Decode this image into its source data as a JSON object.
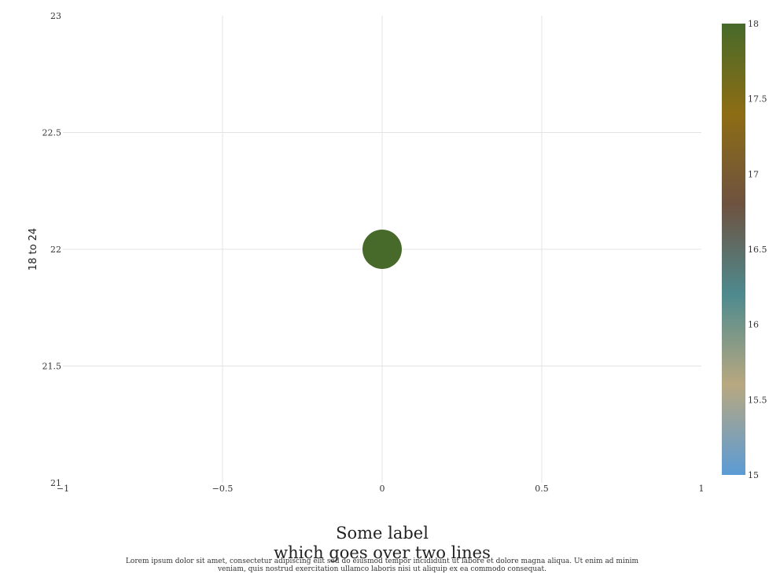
{
  "chart_data": {
    "type": "scatter",
    "title": "",
    "xlabel_lines": [
      "Some label",
      "which goes over two lines"
    ],
    "ylabel": "18 to 24",
    "xlim": [
      -1,
      1
    ],
    "ylim": [
      21,
      23
    ],
    "x_ticks": [
      -1,
      -0.5,
      0,
      0.5,
      1
    ],
    "x_tick_labels": [
      "−1",
      "−0.5",
      "0",
      "0.5",
      "1"
    ],
    "y_ticks": [
      21,
      21.5,
      22,
      22.5,
      23
    ],
    "y_tick_labels": [
      "21",
      "21.5",
      "22",
      "22.5",
      "23"
    ],
    "grid": true,
    "points": [
      {
        "x": 0,
        "y": 22,
        "color_value": 18
      }
    ],
    "colorbar": {
      "range": [
        15,
        18
      ],
      "ticks": [
        15,
        15.5,
        16,
        16.5,
        17,
        17.5,
        18
      ],
      "tick_labels": [
        "15",
        "15.5",
        "16",
        "16.5",
        "17",
        "17.5",
        "18"
      ],
      "colors": [
        "#5b9bd5",
        "#b8a880",
        "#4e8a8e",
        "#6e5240",
        "#8d6d14",
        "#476a2a"
      ]
    }
  },
  "caption": "Lorem ipsum dolor sit amet, consectetur adipiscing elit sed do eiusmod tempor incididunt ut labore et dolore magna aliqua. Ut enim ad minim veniam, quis nostrud exercitation ullamco laboris nisi ut aliquip ex ea commodo consequat."
}
